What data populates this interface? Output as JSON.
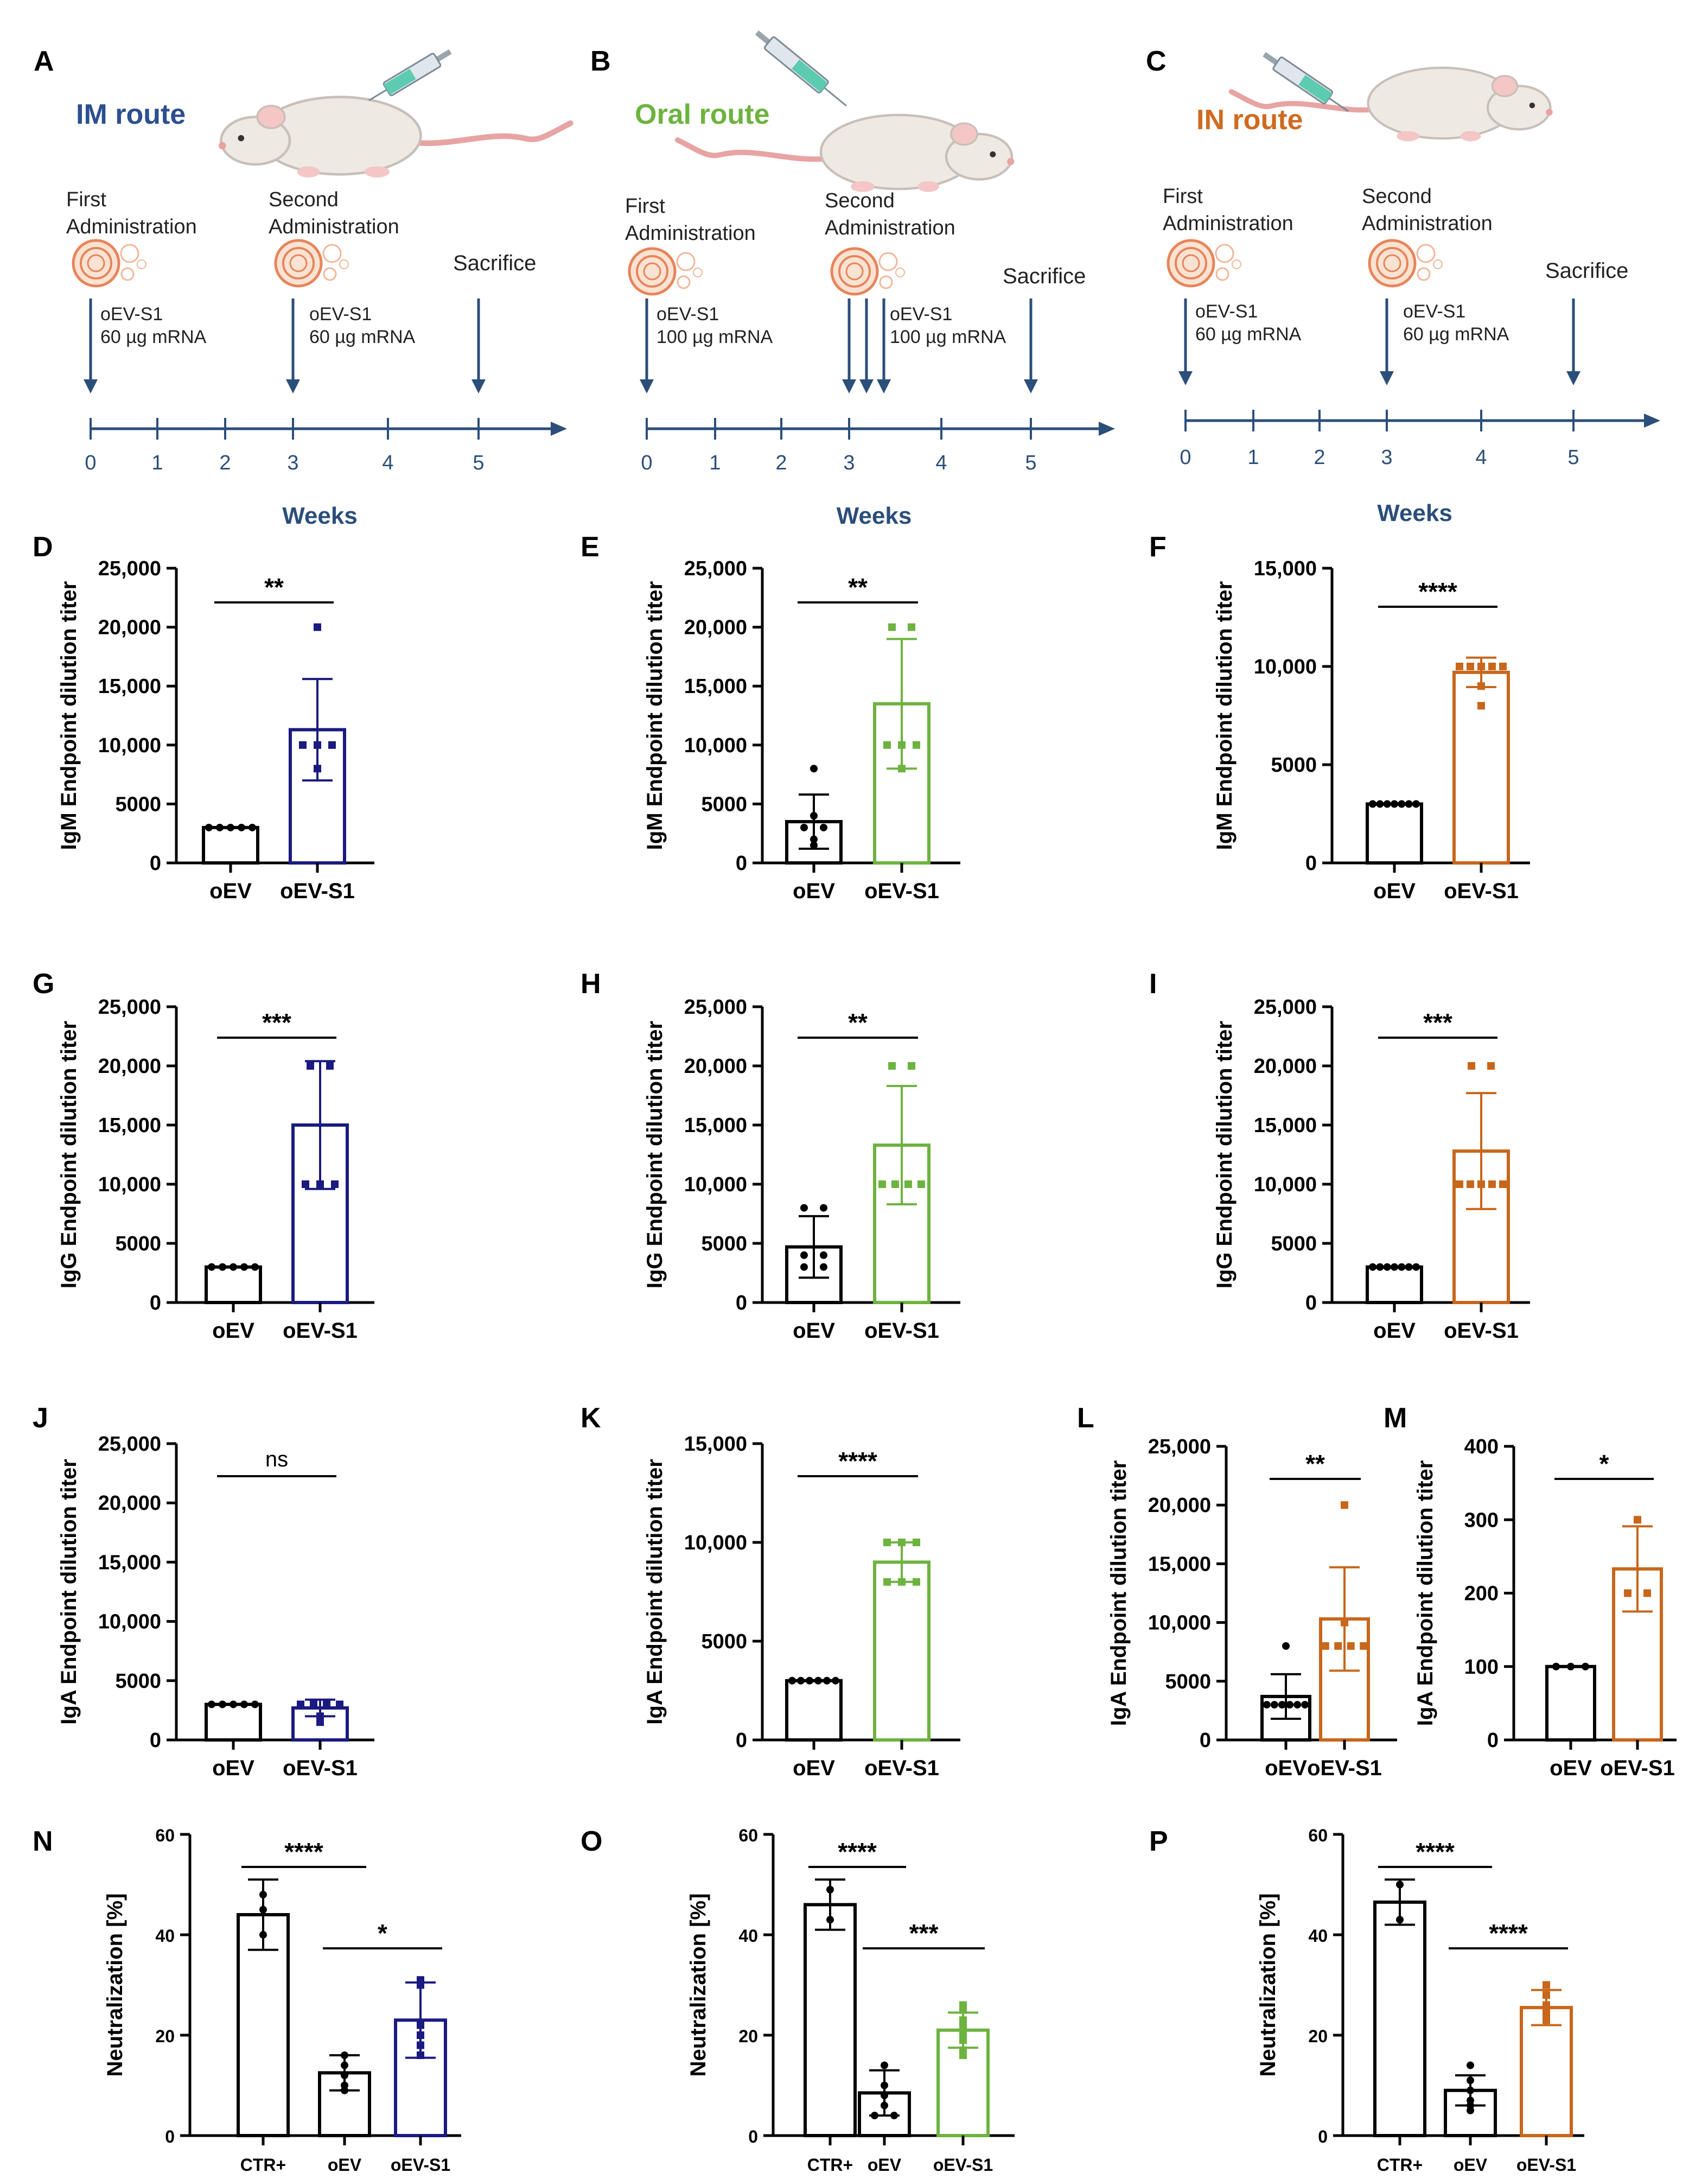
{
  "colors": {
    "black": "#000000",
    "im": "#1a1a80",
    "oral": "#6db33f",
    "in": "#c8661b",
    "axisBlue": "#2b4e7a",
    "routeIM": "#2c4f8e",
    "routeOral": "#6db33f",
    "routeIN": "#d06a1e",
    "particle": "#e8845a"
  },
  "schematics": [
    {
      "panel": "A",
      "route": "IM route",
      "first": [
        "First",
        "Administration"
      ],
      "second": [
        "Second",
        "Administration"
      ],
      "sacrifice": "Sacrifice",
      "dose1": [
        "oEV-S1",
        "60 µg mRNA"
      ],
      "dose2": [
        "oEV-S1",
        "60 µg mRNA"
      ],
      "ticks": [
        "0",
        "1",
        "2",
        "3",
        "4",
        "5"
      ],
      "xlabel": "Weeks",
      "arrows_at_week3": 1
    },
    {
      "panel": "B",
      "route": "Oral route",
      "first": [
        "First",
        "Administration"
      ],
      "second": [
        "Second",
        "Administration"
      ],
      "sacrifice": "Sacrifice",
      "dose1": [
        "oEV-S1",
        "100 µg mRNA"
      ],
      "dose2": [
        "oEV-S1",
        "100 µg mRNA"
      ],
      "ticks": [
        "0",
        "1",
        "2",
        "3",
        "4",
        "5"
      ],
      "xlabel": "Weeks",
      "arrows_at_week3": 3
    },
    {
      "panel": "C",
      "route": "IN route",
      "first": [
        "First",
        "Administration"
      ],
      "second": [
        "Second",
        "Administration"
      ],
      "sacrifice": "Sacrifice",
      "dose1": [
        "oEV-S1",
        "60 µg mRNA"
      ],
      "dose2": [
        "oEV-S1",
        "60 µg mRNA"
      ],
      "ticks": [
        "0",
        "1",
        "2",
        "3",
        "4",
        "5"
      ],
      "xlabel": "Weeks",
      "arrows_at_week3": 1
    }
  ],
  "chart_data": [
    {
      "panel": "D",
      "type": "bar",
      "ylabel": "IgM Endpoint dilution titer",
      "ylim": [
        0,
        25000
      ],
      "yticks": [
        "0",
        "5000",
        "10,000",
        "15,000",
        "20,000",
        "25,000"
      ],
      "ytick_values": [
        0,
        5000,
        10000,
        15000,
        20000,
        25000
      ],
      "categories": [
        "oEV",
        "oEV-S1"
      ],
      "values": [
        3000,
        11300
      ],
      "errors": [
        0,
        4300
      ],
      "series_colors": [
        "black",
        "im"
      ],
      "points": [
        [
          3000,
          3000,
          3000,
          3000,
          3000
        ],
        [
          20000,
          10000,
          10000,
          10000,
          8000
        ]
      ],
      "sig": "**",
      "sig_pair": [
        0,
        1
      ]
    },
    {
      "panel": "E",
      "type": "bar",
      "ylabel": "IgM Endpoint dilution titer",
      "ylim": [
        0,
        25000
      ],
      "yticks": [
        "0",
        "5000",
        "10,000",
        "15,000",
        "20,000",
        "25,000"
      ],
      "ytick_values": [
        0,
        5000,
        10000,
        15000,
        20000,
        25000
      ],
      "categories": [
        "oEV",
        "oEV-S1"
      ],
      "values": [
        3500,
        13500
      ],
      "errors": [
        2300,
        5500
      ],
      "series_colors": [
        "black",
        "oral"
      ],
      "points": [
        [
          8000,
          4000,
          3000,
          3000,
          2000,
          1500
        ],
        [
          20000,
          20000,
          10000,
          10000,
          10000,
          8000
        ]
      ],
      "sig": "**",
      "sig_pair": [
        0,
        1
      ]
    },
    {
      "panel": "F",
      "type": "bar",
      "ylabel": "IgM Endpoint dilution titer",
      "ylim": [
        0,
        15000
      ],
      "yticks": [
        "0",
        "5000",
        "10,000",
        "15,000"
      ],
      "ytick_values": [
        0,
        5000,
        10000,
        15000
      ],
      "categories": [
        "oEV",
        "oEV-S1"
      ],
      "values": [
        3000,
        9700
      ],
      "errors": [
        0,
        750
      ],
      "series_colors": [
        "black",
        "in"
      ],
      "points": [
        [
          3000,
          3000,
          3000,
          3000,
          3000,
          3000,
          3000
        ],
        [
          10000,
          10000,
          10000,
          10000,
          10000,
          9000,
          8000
        ]
      ],
      "sig": "****",
      "sig_pair": [
        0,
        1
      ]
    },
    {
      "panel": "G",
      "type": "bar",
      "ylabel": "IgG Endpoint dilution titer",
      "ylim": [
        0,
        25000
      ],
      "yticks": [
        "0",
        "5000",
        "10,000",
        "15,000",
        "20,000",
        "25,000"
      ],
      "ytick_values": [
        0,
        5000,
        10000,
        15000,
        20000,
        25000
      ],
      "categories": [
        "oEV",
        "oEV-S1"
      ],
      "values": [
        3000,
        15000
      ],
      "errors": [
        0,
        5400
      ],
      "series_colors": [
        "black",
        "im"
      ],
      "points": [
        [
          3000,
          3000,
          3000,
          3000,
          3000
        ],
        [
          20000,
          20000,
          10000,
          10000,
          10000
        ]
      ],
      "sig": "***",
      "sig_pair": [
        0,
        1
      ]
    },
    {
      "panel": "H",
      "type": "bar",
      "ylabel": "IgG Endpoint dilution titer",
      "ylim": [
        0,
        25000
      ],
      "yticks": [
        "0",
        "5000",
        "10,000",
        "15,000",
        "20,000",
        "25,000"
      ],
      "ytick_values": [
        0,
        5000,
        10000,
        15000,
        20000,
        25000
      ],
      "categories": [
        "oEV",
        "oEV-S1"
      ],
      "values": [
        4700,
        13300
      ],
      "errors": [
        2600,
        5000
      ],
      "series_colors": [
        "black",
        "oral"
      ],
      "points": [
        [
          8000,
          8000,
          4000,
          4000,
          3000,
          3000
        ],
        [
          20000,
          20000,
          10000,
          10000,
          10000,
          10000
        ]
      ],
      "sig": "**",
      "sig_pair": [
        0,
        1
      ]
    },
    {
      "panel": "I",
      "type": "bar",
      "ylabel": "IgG Endpoint dilution titer",
      "ylim": [
        0,
        25000
      ],
      "yticks": [
        "0",
        "5000",
        "10,000",
        "15,000",
        "20,000",
        "25,000"
      ],
      "ytick_values": [
        0,
        5000,
        10000,
        15000,
        20000,
        25000
      ],
      "categories": [
        "oEV",
        "oEV-S1"
      ],
      "values": [
        3000,
        12800
      ],
      "errors": [
        0,
        4900
      ],
      "series_colors": [
        "black",
        "in"
      ],
      "points": [
        [
          3000,
          3000,
          3000,
          3000,
          3000,
          3000,
          3000
        ],
        [
          20000,
          20000,
          10000,
          10000,
          10000,
          10000,
          10000
        ]
      ],
      "sig": "***",
      "sig_pair": [
        0,
        1
      ]
    },
    {
      "panel": "J",
      "type": "bar",
      "ylabel": "IgA Endpoint dilution titer",
      "ylim": [
        0,
        25000
      ],
      "yticks": [
        "0",
        "5000",
        "10,000",
        "15,000",
        "20,000",
        "25,000"
      ],
      "ytick_values": [
        0,
        5000,
        10000,
        15000,
        20000,
        25000
      ],
      "categories": [
        "oEV",
        "oEV-S1"
      ],
      "values": [
        3000,
        2700
      ],
      "errors": [
        0,
        700
      ],
      "series_colors": [
        "black",
        "im"
      ],
      "points": [
        [
          3000,
          3000,
          3000,
          3000,
          3000
        ],
        [
          3000,
          3000,
          3000,
          3000,
          2000,
          1500
        ]
      ],
      "sig": "ns",
      "sig_pair": [
        0,
        1
      ]
    },
    {
      "panel": "K",
      "type": "bar",
      "ylabel": "IgA Endpoint dilution titer",
      "ylim": [
        0,
        15000
      ],
      "yticks": [
        "0",
        "5000",
        "10,000",
        "15,000"
      ],
      "ytick_values": [
        0,
        5000,
        10000,
        15000
      ],
      "categories": [
        "oEV",
        "oEV-S1"
      ],
      "values": [
        3000,
        9000
      ],
      "errors": [
        0,
        1000
      ],
      "series_colors": [
        "black",
        "oral"
      ],
      "points": [
        [
          3000,
          3000,
          3000,
          3000,
          3000,
          3000
        ],
        [
          10000,
          10000,
          10000,
          8000,
          8000,
          8000
        ]
      ],
      "sig": "****",
      "sig_pair": [
        0,
        1
      ]
    },
    {
      "panel": "L",
      "type": "bar",
      "ylabel": "IgA Endpoint dilution titer",
      "ylim": [
        0,
        25000
      ],
      "yticks": [
        "0",
        "5000",
        "10,000",
        "15,000",
        "20,000",
        "25,000"
      ],
      "ytick_values": [
        0,
        5000,
        10000,
        15000,
        20000,
        25000
      ],
      "categories": [
        "oEV",
        "oEV-S1"
      ],
      "values": [
        3700,
        10300
      ],
      "errors": [
        1900,
        4400
      ],
      "series_colors": [
        "black",
        "in"
      ],
      "points": [
        [
          8000,
          3000,
          3000,
          3000,
          3000,
          3000,
          3000
        ],
        [
          20000,
          10000,
          8000,
          8000,
          8000,
          8000
        ]
      ],
      "sig": "**",
      "sig_pair": [
        0,
        1
      ]
    },
    {
      "panel": "M",
      "type": "bar",
      "ylabel": "IgA Endpoint dilution titer",
      "ylim": [
        0,
        400
      ],
      "yticks": [
        "0",
        "100",
        "200",
        "300",
        "400"
      ],
      "ytick_values": [
        0,
        100,
        200,
        300,
        400
      ],
      "categories": [
        "oEV",
        "oEV-S1"
      ],
      "values": [
        100,
        233
      ],
      "errors": [
        0,
        58
      ],
      "series_colors": [
        "black",
        "in"
      ],
      "points": [
        [
          100,
          100,
          100
        ],
        [
          300,
          200,
          200
        ]
      ],
      "sig": "*",
      "sig_pair": [
        0,
        1
      ]
    },
    {
      "panel": "N",
      "type": "bar",
      "ylabel": "Neutralization [%]",
      "ylim": [
        0,
        60
      ],
      "yticks": [
        "0",
        "20",
        "40",
        "60"
      ],
      "ytick_values": [
        0,
        20,
        40,
        60
      ],
      "categories": [
        "CTR+",
        "oEV",
        "oEV-S1"
      ],
      "values": [
        44,
        12.5,
        23
      ],
      "errors": [
        7,
        3.5,
        7.5
      ],
      "series_colors": [
        "black",
        "black",
        "im"
      ],
      "points": [
        [
          48,
          40,
          45
        ],
        [
          16,
          14,
          12,
          10,
          9
        ],
        [
          31,
          30,
          22,
          20,
          18,
          16
        ]
      ],
      "sig": [
        "****",
        "*"
      ],
      "sig_pairs": [
        [
          0,
          1
        ],
        [
          1,
          2
        ]
      ]
    },
    {
      "panel": "O",
      "type": "bar",
      "ylabel": "Neutralization [%]",
      "ylim": [
        0,
        60
      ],
      "yticks": [
        "0",
        "20",
        "40",
        "60"
      ],
      "ytick_values": [
        0,
        20,
        40,
        60
      ],
      "categories": [
        "CTR+",
        "oEV",
        "oEV-S1"
      ],
      "values": [
        46,
        8.5,
        21
      ],
      "errors": [
        5,
        4.5,
        3.5
      ],
      "series_colors": [
        "black",
        "black",
        "oral"
      ],
      "points": [
        [
          49,
          43
        ],
        [
          14,
          10,
          8,
          6,
          4,
          4
        ],
        [
          26,
          25,
          23,
          22,
          21,
          20,
          19,
          17,
          16
        ]
      ],
      "sig": [
        "****",
        "***"
      ],
      "sig_pairs": [
        [
          0,
          1
        ],
        [
          1,
          2
        ]
      ]
    },
    {
      "panel": "P",
      "type": "bar",
      "ylabel": "Neutralization [%]",
      "ylim": [
        0,
        60
      ],
      "yticks": [
        "0",
        "20",
        "40",
        "60"
      ],
      "ytick_values": [
        0,
        20,
        40,
        60
      ],
      "categories": [
        "CTR+",
        "oEV",
        "oEV-S1"
      ],
      "values": [
        46.5,
        9,
        25.5
      ],
      "errors": [
        4.5,
        3,
        3.5
      ],
      "series_colors": [
        "black",
        "black",
        "in"
      ],
      "points": [
        [
          50,
          43
        ],
        [
          14,
          11,
          9,
          7,
          6,
          5
        ],
        [
          30,
          28,
          26,
          25,
          24,
          23
        ]
      ],
      "sig": [
        "****",
        "****"
      ],
      "sig_pairs": [
        [
          0,
          1
        ],
        [
          1,
          2
        ]
      ]
    }
  ]
}
